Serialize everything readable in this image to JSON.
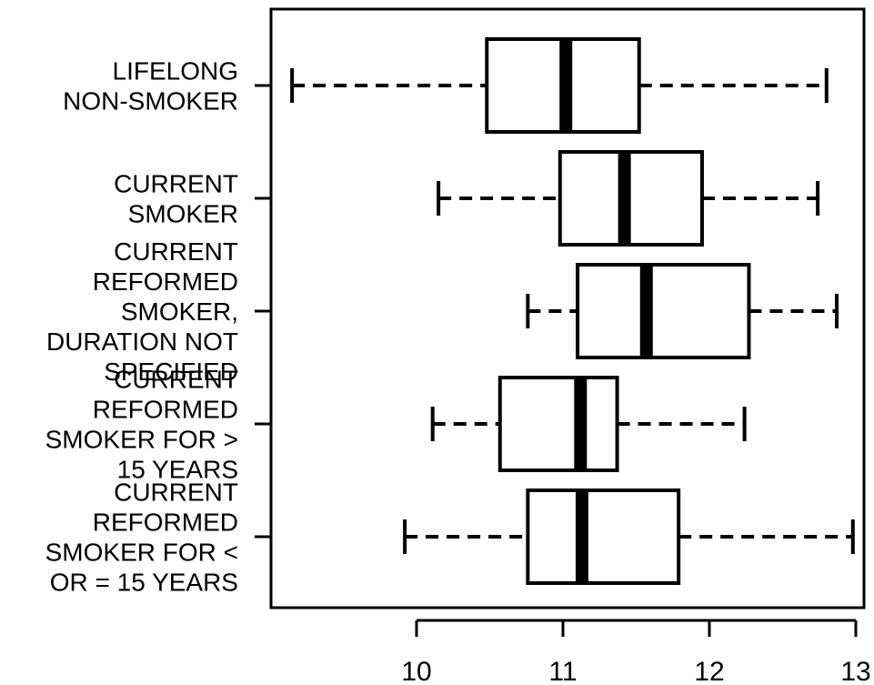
{
  "chart_data": {
    "type": "boxplot",
    "orientation": "horizontal",
    "title": "",
    "xlabel": "",
    "ylabel": "",
    "xlim": [
      9.0,
      13.0
    ],
    "x_ticks": [
      10,
      11,
      12,
      13
    ],
    "x_tick_labels": [
      "10",
      "11",
      "12",
      "13"
    ],
    "grid": false,
    "categories": [
      {
        "label_lines": [
          "LIFELONG",
          "NON-SMOKER"
        ],
        "whisker_low": 9.15,
        "q1": 10.48,
        "median": 11.02,
        "q3": 11.52,
        "whisker_high": 12.8
      },
      {
        "label_lines": [
          "CURRENT",
          "SMOKER"
        ],
        "whisker_low": 10.15,
        "q1": 10.98,
        "median": 11.42,
        "q3": 11.95,
        "whisker_high": 12.74
      },
      {
        "label_lines": [
          "CURRENT",
          "REFORMED",
          "SMOKER,",
          "DURATION NOT",
          "SPECIFIED"
        ],
        "whisker_low": 10.76,
        "q1": 11.1,
        "median": 11.57,
        "q3": 12.27,
        "whisker_high": 12.87
      },
      {
        "label_lines": [
          "CURRENT",
          "REFORMED",
          "SMOKER FOR >",
          "15 YEARS"
        ],
        "whisker_low": 10.11,
        "q1": 10.57,
        "median": 11.12,
        "q3": 11.37,
        "whisker_high": 12.24
      },
      {
        "label_lines": [
          "CURRENT",
          "REFORMED",
          "SMOKER FOR <",
          "OR = 15 YEARS"
        ],
        "whisker_low": 9.92,
        "q1": 10.76,
        "median": 11.13,
        "q3": 11.79,
        "whisker_high": 12.98
      }
    ]
  }
}
